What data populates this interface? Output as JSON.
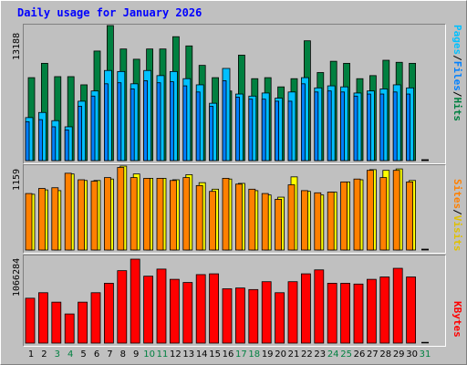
{
  "chart_data": {
    "type": "bar",
    "title": "Daily usage for January 2026",
    "categories": [
      "1",
      "2",
      "3",
      "4",
      "5",
      "6",
      "7",
      "8",
      "9",
      "10",
      "11",
      "12",
      "13",
      "14",
      "15",
      "16",
      "17",
      "18",
      "19",
      "20",
      "21",
      "22",
      "23",
      "24",
      "25",
      "26",
      "27",
      "28",
      "29",
      "30",
      "31"
    ],
    "weekend_days": [
      "3",
      "4",
      "10",
      "11",
      "17",
      "18",
      "24",
      "25",
      "31"
    ],
    "hits_panel": {
      "ymax_label": "13188",
      "ylim": [
        0,
        13188
      ],
      "legend": [
        "Pages",
        "/",
        "Files",
        "/",
        "Hits"
      ],
      "series": [
        {
          "name": "Hits",
          "color": "#008040",
          "values": [
            8100,
            9500,
            8200,
            8200,
            7400,
            10700,
            13188,
            10900,
            9900,
            10900,
            10900,
            12100,
            11200,
            9300,
            8100,
            6800,
            10300,
            8000,
            8100,
            7200,
            8000,
            11700,
            8600,
            9700,
            9500,
            8000,
            8300,
            9800,
            9600,
            9500,
            0
          ]
        },
        {
          "name": "Files",
          "color": "#00c0ff",
          "values": [
            4200,
            4700,
            3900,
            3300,
            5800,
            6800,
            8800,
            8700,
            7500,
            8800,
            8300,
            8700,
            8000,
            7400,
            5600,
            9000,
            6500,
            6300,
            6600,
            6100,
            6700,
            8100,
            7100,
            7300,
            7200,
            6600,
            6800,
            7000,
            7400,
            7100,
            0
          ]
        },
        {
          "name": "Pages",
          "color": "#0080ff",
          "values": [
            3800,
            4000,
            3300,
            3000,
            5300,
            6300,
            7500,
            7600,
            7000,
            7800,
            7600,
            7700,
            7300,
            6700,
            5300,
            7800,
            6200,
            6000,
            6000,
            5800,
            5800,
            7500,
            6700,
            6800,
            6700,
            6300,
            6500,
            6500,
            6700,
            6500,
            0
          ]
        }
      ]
    },
    "visits_panel": {
      "ymax_label": "1159",
      "ylim": [
        0,
        1159
      ],
      "legend": [
        "Sites",
        "/",
        "Visits"
      ],
      "series": [
        {
          "name": "Visits",
          "color": "#ffff00",
          "values": [
            770,
            830,
            820,
            1050,
            960,
            960,
            980,
            1159,
            1050,
            990,
            990,
            970,
            1040,
            930,
            840,
            980,
            920,
            820,
            760,
            730,
            1010,
            810,
            760,
            800,
            940,
            970,
            1110,
            1100,
            1120,
            960,
            0
          ]
        },
        {
          "name": "Sites",
          "color": "#ff8000",
          "values": [
            780,
            850,
            860,
            1060,
            970,
            950,
            1000,
            1140,
            1000,
            990,
            990,
            960,
            1000,
            890,
            810,
            990,
            910,
            840,
            780,
            700,
            900,
            820,
            790,
            800,
            940,
            980,
            1100,
            1000,
            1100,
            940,
            0
          ]
        }
      ]
    },
    "kbytes_panel": {
      "ymax_label": "1066284",
      "ylim": [
        0,
        1066284
      ],
      "legend": [
        "KBytes"
      ],
      "series": [
        {
          "name": "KBytes",
          "color": "#ff0000",
          "values": [
            570000,
            640000,
            520000,
            370000,
            520000,
            640000,
            760000,
            920000,
            1066284,
            850000,
            940000,
            810000,
            770000,
            870000,
            880000,
            690000,
            700000,
            680000,
            780000,
            640000,
            780000,
            880000,
            930000,
            760000,
            760000,
            750000,
            810000,
            840000,
            950000,
            840000,
            0
          ]
        }
      ]
    }
  }
}
